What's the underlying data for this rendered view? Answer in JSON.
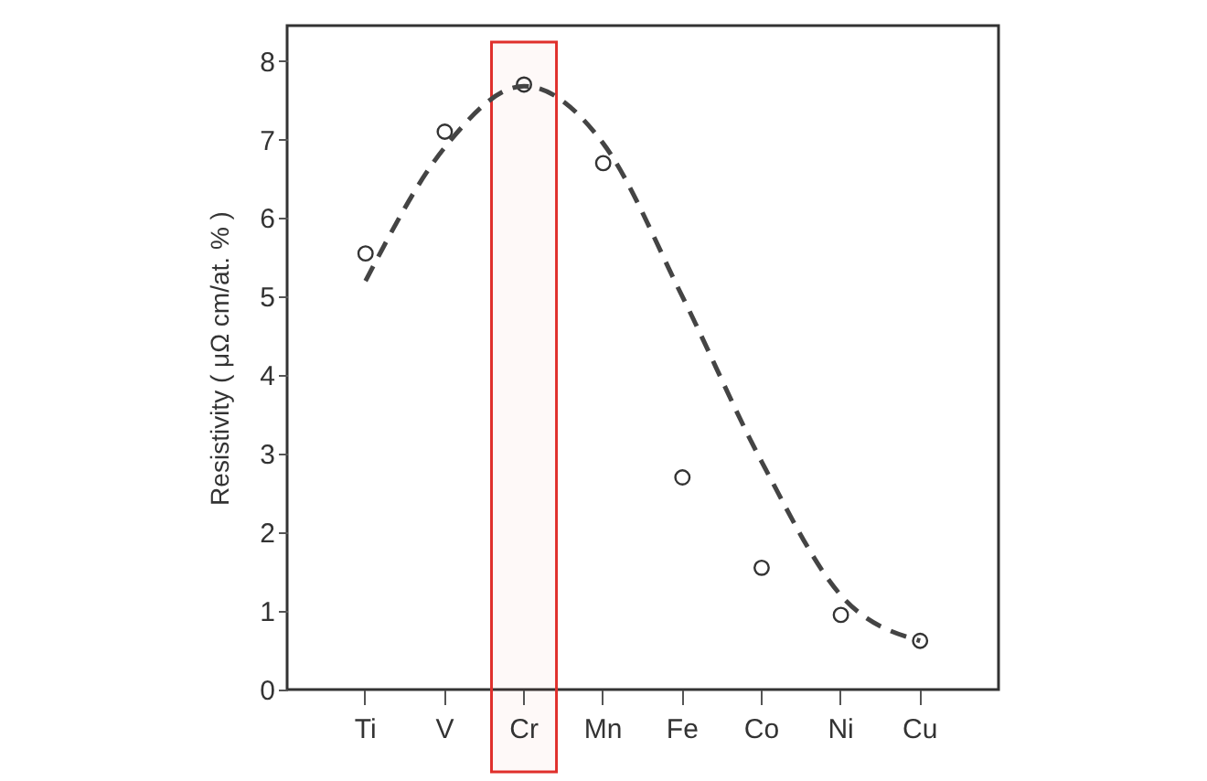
{
  "chart_data": {
    "type": "scatter",
    "ylabel": "Resistivity ( μΩ cm/at. % )",
    "categories": [
      "Ti",
      "V",
      "Cr",
      "Mn",
      "Fe",
      "Co",
      "Ni",
      "Cu"
    ],
    "series": [
      {
        "color": "#333333",
        "marker": "circle",
        "values": [
          5.55,
          7.1,
          7.7,
          6.7,
          2.7,
          1.55,
          0.95,
          0.62
        ]
      },
      {
        "type": "line",
        "color": "#444444",
        "line_style": "dashed",
        "x": [
          "Ti",
          "V",
          "Cr",
          "Mn",
          "Fe",
          "Co",
          "Ni",
          "Cu"
        ],
        "values": [
          5.2,
          6.9,
          7.68,
          6.95,
          5.0,
          2.9,
          1.2,
          0.62
        ]
      }
    ],
    "ylim": [
      0,
      8.45
    ],
    "yticks": [
      0,
      1,
      2,
      3,
      4,
      5,
      6,
      7,
      8
    ],
    "grid": false,
    "bands": [
      {
        "axis": "x",
        "from": "Cr",
        "to": "Cr",
        "color": "#e0302c"
      }
    ]
  }
}
